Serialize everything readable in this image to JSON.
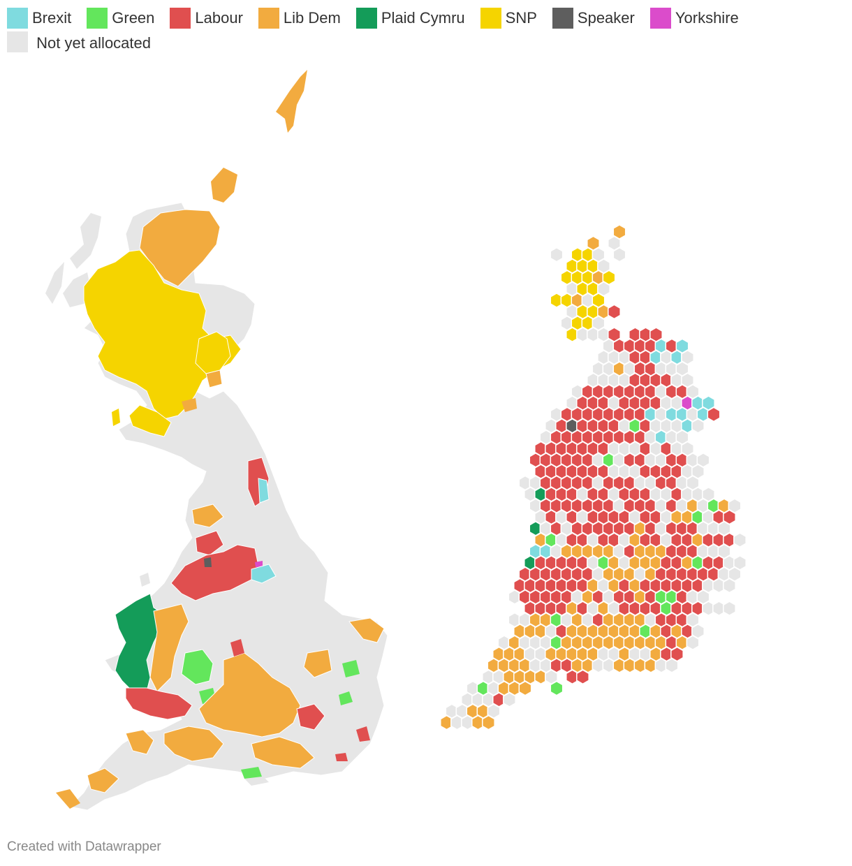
{
  "legend": {
    "items": [
      {
        "label": "Brexit",
        "color": "#7FDBDF"
      },
      {
        "label": "Green",
        "color": "#63E65C"
      },
      {
        "label": "Labour",
        "color": "#E04F4F"
      },
      {
        "label": "Lib Dem",
        "color": "#F2AB3F"
      },
      {
        "label": "Plaid Cymru",
        "color": "#149C59"
      },
      {
        "label": "SNP",
        "color": "#F5D400"
      },
      {
        "label": "Speaker",
        "color": "#5E5E5E"
      },
      {
        "label": "Yorkshire",
        "color": "#DB4CCB"
      },
      {
        "label": "Not yet allocated",
        "color": "#E6E6E6"
      }
    ]
  },
  "footer": {
    "credit": "Created with Datawrapper"
  }
}
